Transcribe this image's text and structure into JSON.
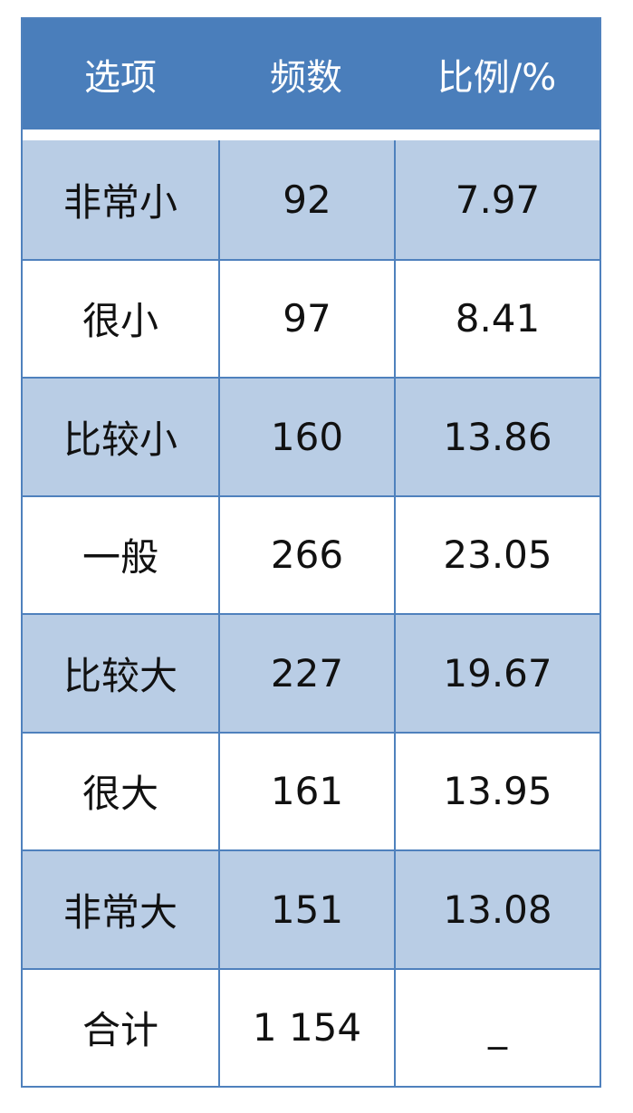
{
  "header": [
    "选项",
    "频数",
    "比例/%"
  ],
  "rows": [
    {
      "option": "非常小",
      "count": "92",
      "percent": "7.97"
    },
    {
      "option": "很小",
      "count": "97",
      "percent": "8.41"
    },
    {
      "option": "比较小",
      "count": "160",
      "percent": "13.86"
    },
    {
      "option": "一般",
      "count": "266",
      "percent": "23.05"
    },
    {
      "option": "比较大",
      "count": "227",
      "percent": "19.67"
    },
    {
      "option": "很大",
      "count": "161",
      "percent": "13.95"
    },
    {
      "option": "非常大",
      "count": "151",
      "percent": "13.08"
    },
    {
      "option": "合计",
      "count": "1 154",
      "percent": "_"
    }
  ],
  "colors": {
    "header": "#4a7ebb",
    "shade": "#b9cde5",
    "border": "#4f81bd"
  }
}
